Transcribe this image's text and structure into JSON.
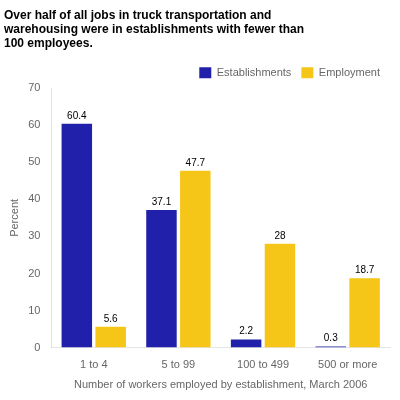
{
  "chart_data": {
    "type": "bar",
    "title": [
      "Over half of all jobs in truck transportation and",
      "warehousing were in establishments with fewer than",
      "100 employees."
    ],
    "ylabel": "Percent",
    "xlabel": "Number of workers employed by establishment, March 2006",
    "categories": [
      "1 to 4",
      "5 to 99",
      "100 to 499",
      "500 or more"
    ],
    "series": [
      {
        "name": "Establishments",
        "color": "#2020aa",
        "values": [
          60.4,
          37.1,
          2.2,
          0.3
        ]
      },
      {
        "name": "Employment",
        "color": "#f5c518",
        "values": [
          5.6,
          47.7,
          28.0,
          18.7
        ]
      }
    ],
    "ylim": [
      0,
      70
    ],
    "yticks": [
      0,
      10,
      20,
      30,
      40,
      50,
      60,
      70
    ],
    "grid": false,
    "legend": "upper right",
    "data_labels": true
  }
}
